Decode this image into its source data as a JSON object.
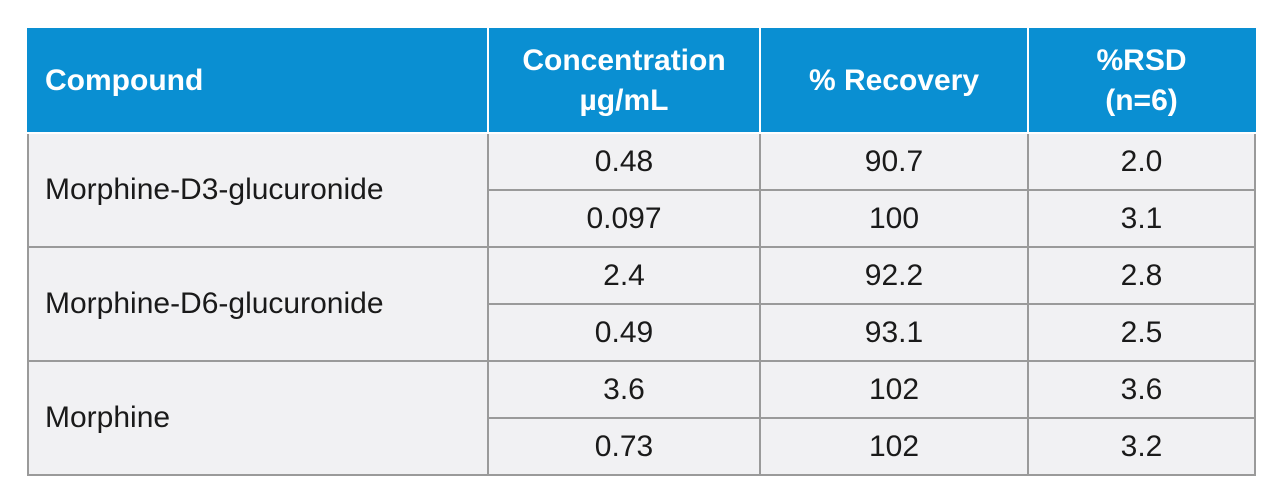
{
  "table": {
    "headers": [
      {
        "line1": "Compound",
        "line2": ""
      },
      {
        "line1": "Concentration",
        "line2": "µg/mL"
      },
      {
        "line1": "% Recovery",
        "line2": ""
      },
      {
        "line1": "%RSD",
        "line2": "(n=6)"
      }
    ],
    "groups": [
      {
        "compound": "Morphine-D3-glucuronide",
        "rows": [
          {
            "concentration": "0.48",
            "recovery": "90.7",
            "rsd": "2.0"
          },
          {
            "concentration": "0.097",
            "recovery": "100",
            "rsd": "3.1"
          }
        ]
      },
      {
        "compound": "Morphine-D6-glucuronide",
        "rows": [
          {
            "concentration": "2.4",
            "recovery": "92.2",
            "rsd": "2.8"
          },
          {
            "concentration": "0.49",
            "recovery": "93.1",
            "rsd": "2.5"
          }
        ]
      },
      {
        "compound": "Morphine",
        "rows": [
          {
            "concentration": "3.6",
            "recovery": "102",
            "rsd": "3.6"
          },
          {
            "concentration": "0.73",
            "recovery": "102",
            "rsd": "3.2"
          }
        ]
      }
    ]
  },
  "colors": {
    "header_bg": "#0a8fd2",
    "header_text": "#ffffff",
    "row_bg": "#f1f1f3",
    "border": "#9a9a9a"
  }
}
